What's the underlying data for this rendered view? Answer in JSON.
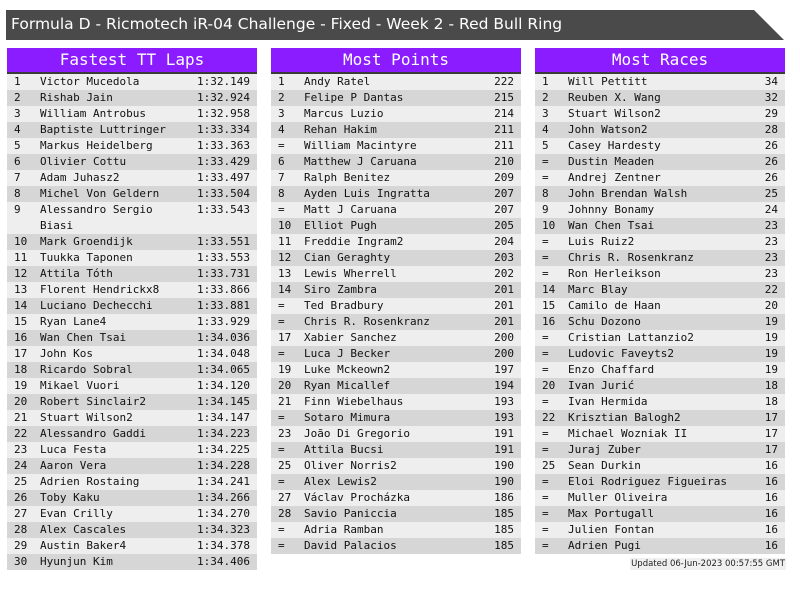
{
  "title": "Formula D - Ricmotech iR-04 Challenge - Fixed - Week 2 - Red Bull Ring",
  "colors": {
    "header": "#8a1cff",
    "titlebar": "#4a4a4a"
  },
  "panels": [
    {
      "title": "Fastest TT Laps",
      "rows": [
        [
          "1",
          "Victor Mucedola",
          "1:32.149"
        ],
        [
          "2",
          "Rishab Jain",
          "1:32.924"
        ],
        [
          "3",
          "William Antrobus",
          "1:32.958"
        ],
        [
          "4",
          "Baptiste Luttringer",
          "1:33.334"
        ],
        [
          "5",
          "Markus Heidelberg",
          "1:33.363"
        ],
        [
          "6",
          "Olivier Cottu",
          "1:33.429"
        ],
        [
          "7",
          "Adam Juhasz2",
          "1:33.497"
        ],
        [
          "8",
          "Michel Von Geldern",
          "1:33.504"
        ],
        [
          "9",
          "Alessandro Sergio Biasi",
          "1:33.543"
        ],
        [
          "10",
          "Mark Groendijk",
          "1:33.551"
        ],
        [
          "11",
          "Tuukka Taponen",
          "1:33.553"
        ],
        [
          "12",
          "Attila Tóth",
          "1:33.731"
        ],
        [
          "13",
          "Florent Hendrickx8",
          "1:33.866"
        ],
        [
          "14",
          "Luciano Dechecchi",
          "1:33.881"
        ],
        [
          "15",
          "Ryan Lane4",
          "1:33.929"
        ],
        [
          "16",
          "Wan Chen Tsai",
          "1:34.036"
        ],
        [
          "17",
          "John Kos",
          "1:34.048"
        ],
        [
          "18",
          "Ricardo Sobral",
          "1:34.065"
        ],
        [
          "19",
          "Mikael Vuori",
          "1:34.120"
        ],
        [
          "20",
          "Robert Sinclair2",
          "1:34.145"
        ],
        [
          "21",
          "Stuart Wilson2",
          "1:34.147"
        ],
        [
          "22",
          "Alessandro Gaddi",
          "1:34.223"
        ],
        [
          "23",
          "Luca Festa",
          "1:34.225"
        ],
        [
          "24",
          "Aaron Vera",
          "1:34.228"
        ],
        [
          "25",
          "Adrien Rostaing",
          "1:34.241"
        ],
        [
          "26",
          "Toby Kaku",
          "1:34.266"
        ],
        [
          "27",
          "Evan Crilly",
          "1:34.270"
        ],
        [
          "28",
          "Alex Cascales",
          "1:34.323"
        ],
        [
          "29",
          "Austin Baker4",
          "1:34.378"
        ],
        [
          "30",
          "Hyunjun Kim",
          "1:34.406"
        ]
      ]
    },
    {
      "title": "Most Points",
      "rows": [
        [
          "1",
          "Andy Ratel",
          "222"
        ],
        [
          "2",
          "Felipe P Dantas",
          "215"
        ],
        [
          "3",
          "Marcus Luzio",
          "214"
        ],
        [
          "4",
          "Rehan Hakim",
          "211"
        ],
        [
          "=",
          "William Macintyre",
          "211"
        ],
        [
          "6",
          "Matthew J Caruana",
          "210"
        ],
        [
          "7",
          "Ralph Benitez",
          "209"
        ],
        [
          "8",
          "Ayden Luis Ingratta",
          "207"
        ],
        [
          "=",
          "Matt J Caruana",
          "207"
        ],
        [
          "10",
          "Elliot Pugh",
          "205"
        ],
        [
          "11",
          "Freddie Ingram2",
          "204"
        ],
        [
          "12",
          "Cian Geraghty",
          "203"
        ],
        [
          "13",
          "Lewis Wherrell",
          "202"
        ],
        [
          "14",
          "Siro Zambra",
          "201"
        ],
        [
          "=",
          "Ted Bradbury",
          "201"
        ],
        [
          "=",
          "Chris R. Rosenkranz",
          "201"
        ],
        [
          "17",
          "Xabier Sanchez",
          "200"
        ],
        [
          "=",
          "Luca J Becker",
          "200"
        ],
        [
          "19",
          "Luke Mckeown2",
          "197"
        ],
        [
          "20",
          "Ryan Micallef",
          "194"
        ],
        [
          "21",
          "Finn Wiebelhaus",
          "193"
        ],
        [
          "=",
          "Sotaro Mimura",
          "193"
        ],
        [
          "23",
          "João Di Gregorio",
          "191"
        ],
        [
          "=",
          "Attila Bucsi",
          "191"
        ],
        [
          "25",
          "Oliver Norris2",
          "190"
        ],
        [
          "=",
          "Alex Lewis2",
          "190"
        ],
        [
          "27",
          "Václav Procházka",
          "186"
        ],
        [
          "28",
          "Savio Paniccia",
          "185"
        ],
        [
          "=",
          "Adria Ramban",
          "185"
        ],
        [
          "=",
          "David Palacios",
          "185"
        ]
      ]
    },
    {
      "title": "Most Races",
      "rows": [
        [
          "1",
          "Will Pettitt",
          "34"
        ],
        [
          "2",
          "Reuben X. Wang",
          "32"
        ],
        [
          "3",
          "Stuart Wilson2",
          "29"
        ],
        [
          "4",
          "John Watson2",
          "28"
        ],
        [
          "5",
          "Casey Hardesty",
          "26"
        ],
        [
          "=",
          "Dustin Meaden",
          "26"
        ],
        [
          "=",
          "Andrej Zentner",
          "26"
        ],
        [
          "8",
          "John Brendan Walsh",
          "25"
        ],
        [
          "9",
          "Johnny Bonamy",
          "24"
        ],
        [
          "10",
          "Wan Chen Tsai",
          "23"
        ],
        [
          "=",
          "Luis Ruiz2",
          "23"
        ],
        [
          "=",
          "Chris R. Rosenkranz",
          "23"
        ],
        [
          "=",
          "Ron Herleikson",
          "23"
        ],
        [
          "14",
          "Marc Blay",
          "22"
        ],
        [
          "15",
          "Camilo de Haan",
          "20"
        ],
        [
          "16",
          "Schu Dozono",
          "19"
        ],
        [
          "=",
          "Cristian Lattanzio2",
          "19"
        ],
        [
          "=",
          "Ludovic Faveyts2",
          "19"
        ],
        [
          "=",
          "Enzo Chaffard",
          "19"
        ],
        [
          "20",
          "Ivan Jurić",
          "18"
        ],
        [
          "=",
          "Ivan Hermida",
          "18"
        ],
        [
          "22",
          "Krisztian Balogh2",
          "17"
        ],
        [
          "=",
          "Michael Wozniak II",
          "17"
        ],
        [
          "=",
          "Juraj Zuber",
          "17"
        ],
        [
          "25",
          "Sean Durkin",
          "16"
        ],
        [
          "=",
          "Eloi Rodriguez Figueiras",
          "16"
        ],
        [
          "=",
          "Muller Oliveira",
          "16"
        ],
        [
          "=",
          "Max Portugall",
          "16"
        ],
        [
          "=",
          "Julien Fontan",
          "16"
        ],
        [
          "=",
          "Adrien Pugi",
          "16"
        ]
      ]
    }
  ],
  "footer": "Updated 06-Jun-2023 00:57:55 GMT"
}
